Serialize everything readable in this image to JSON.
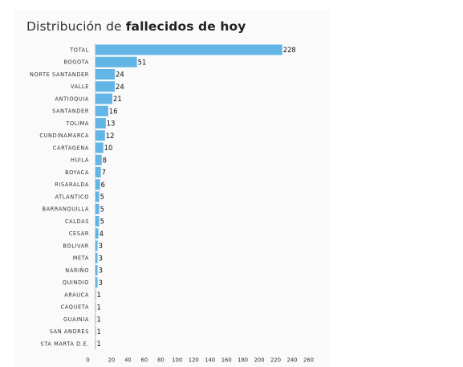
{
  "title": {
    "prefix": "Distribución de ",
    "bold": "fallecidos de hoy"
  },
  "colors": {
    "bar": "#62b5e5",
    "card_background": "#fafafa",
    "baseline": "#d6d6d6"
  },
  "chart_data": {
    "type": "bar",
    "orientation": "horizontal",
    "title": "Distribución de fallecidos de hoy",
    "xlabel": "",
    "ylabel": "",
    "xlim": [
      0,
      260
    ],
    "x_ticks": [
      0,
      20,
      40,
      60,
      80,
      100,
      120,
      140,
      160,
      180,
      200,
      220,
      240,
      260
    ],
    "grid": false,
    "legend": "none",
    "categories": [
      "TOTAL",
      "BOGOTA",
      "NORTE SANTANDER",
      "VALLE",
      "ANTIOQUIA",
      "SANTANDER",
      "TOLIMA",
      "CUNDINAMARCA",
      "CARTAGENA",
      "HUILA",
      "BOYACA",
      "RISARALDA",
      "ATLANTICO",
      "BARRANQUILLA",
      "CALDAS",
      "CESAR",
      "BOLIVAR",
      "META",
      "NARIÑO",
      "QUINDIO",
      "ARAUCA",
      "CAQUETA",
      "GUAINIA",
      "SAN ANDRES",
      "STA MARTA D.E."
    ],
    "values": [
      228,
      51,
      24,
      24,
      21,
      16,
      13,
      12,
      10,
      8,
      7,
      6,
      5,
      5,
      5,
      4,
      3,
      3,
      3,
      3,
      1,
      1,
      1,
      1,
      1
    ]
  }
}
